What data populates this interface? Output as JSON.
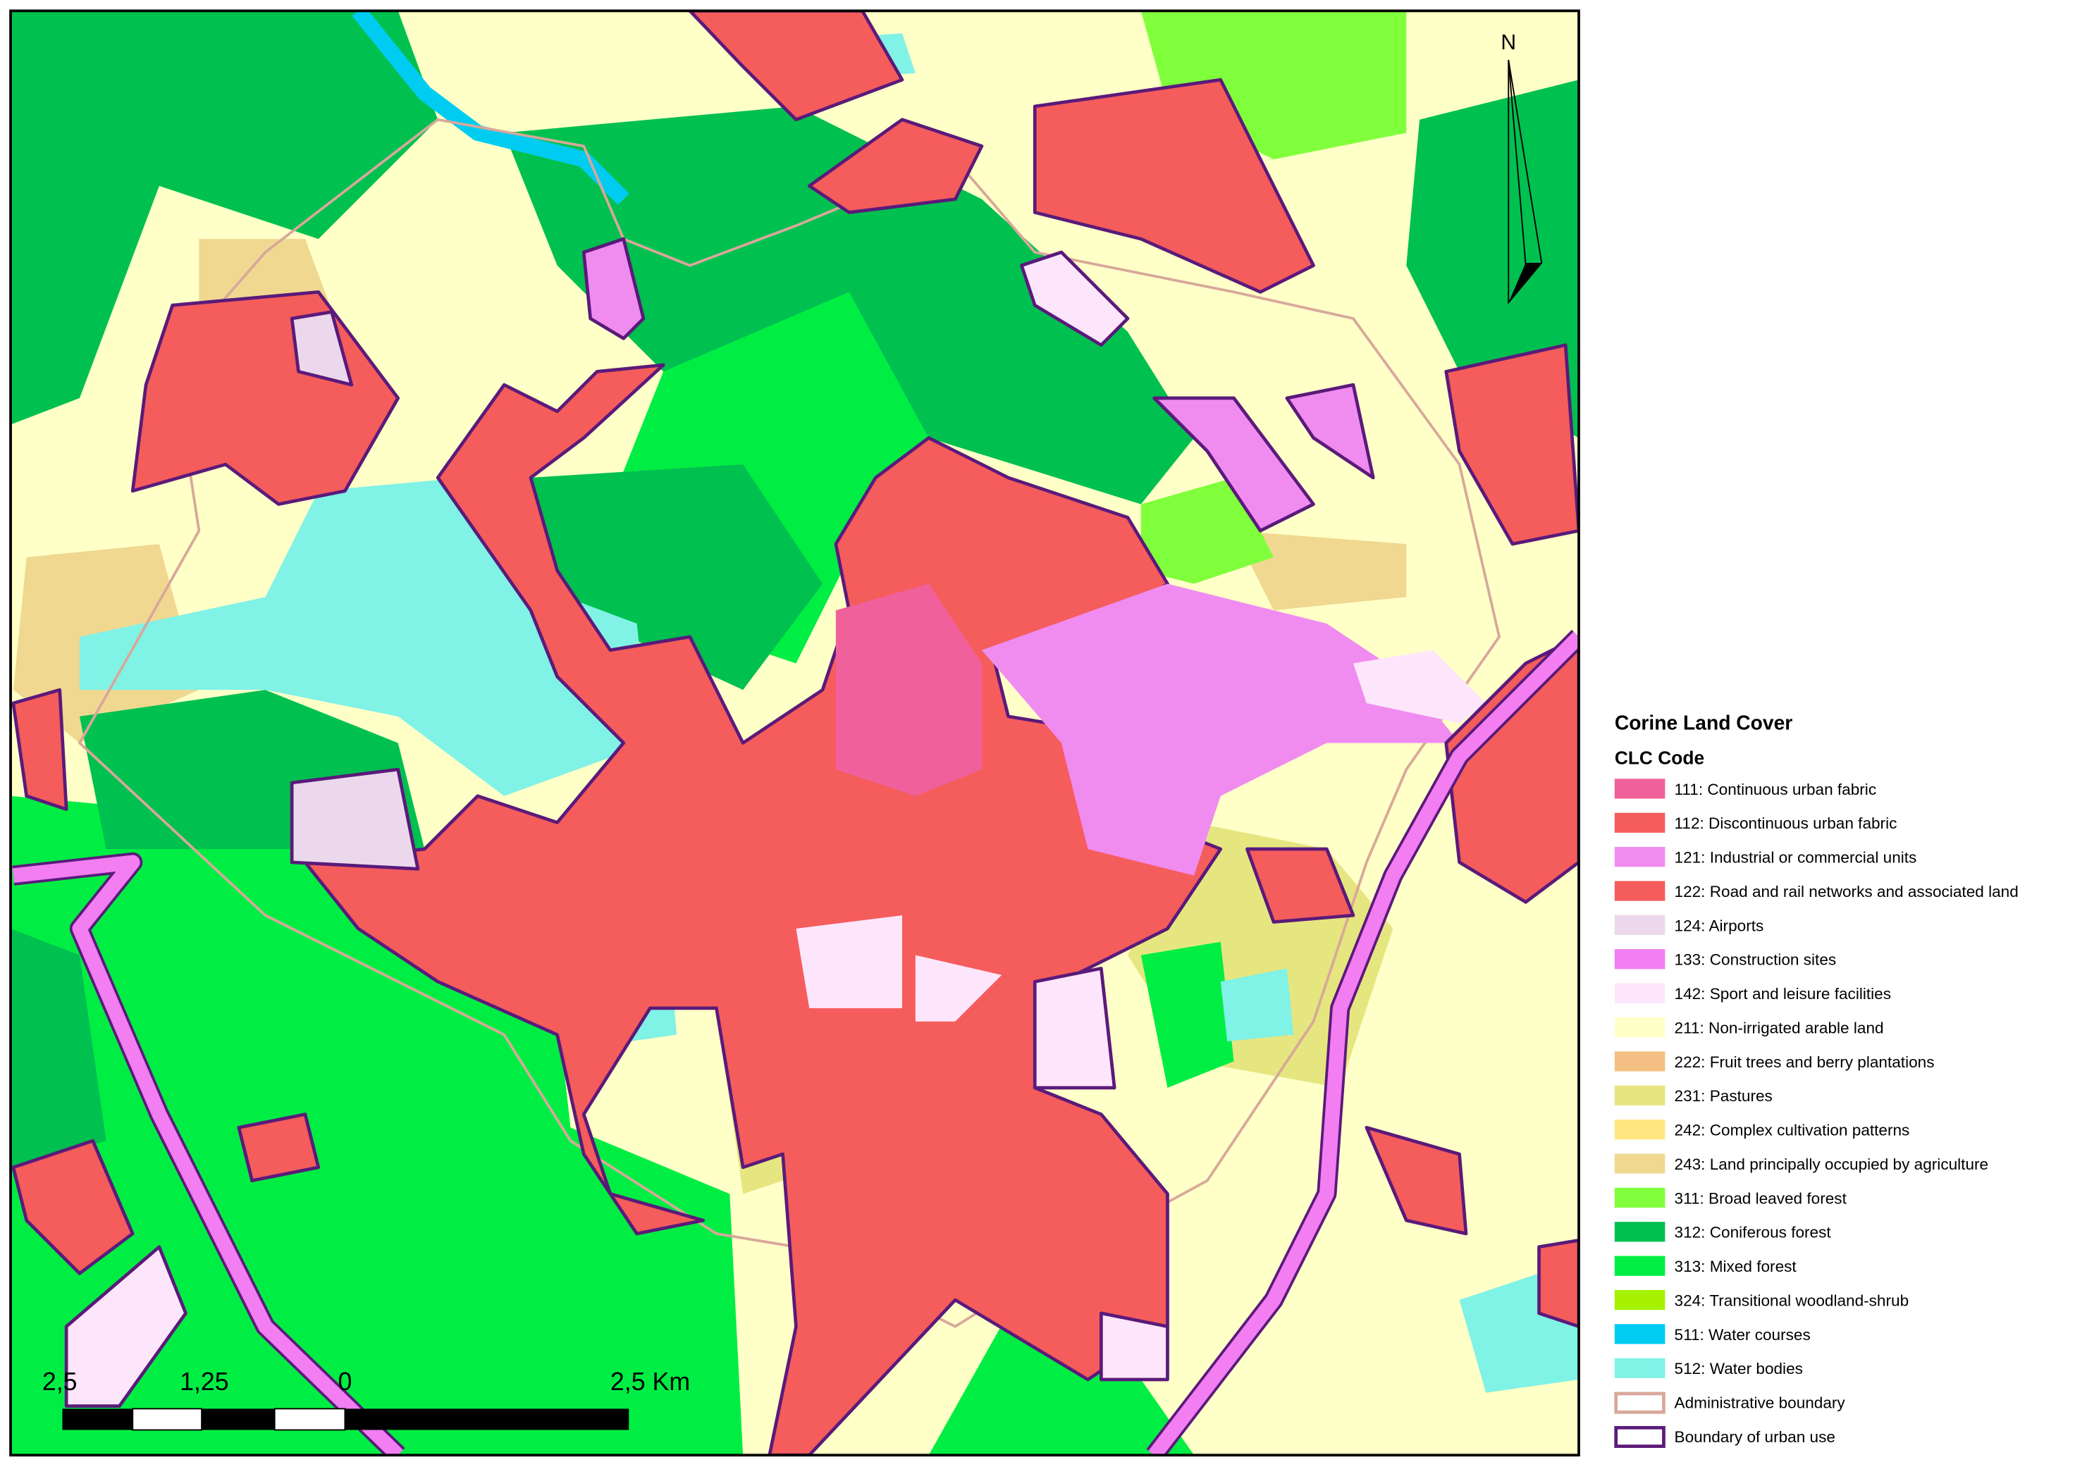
{
  "map": {
    "north_label": "N",
    "scale_bar": {
      "labels": [
        "2,5",
        "1,25",
        "0",
        "2,5 Km"
      ]
    },
    "legend": {
      "title": "Corine Land Cover",
      "subtitle": "CLC Code",
      "items": [
        {
          "label": "111: Continuous urban fabric",
          "color": "#f0609a"
        },
        {
          "label": "112: Discontinuous urban fabric",
          "color": "#f55c5c"
        },
        {
          "label": "121: Industrial or commercial units",
          "color": "#f08cf0"
        },
        {
          "label": "122: Road and rail networks and associated land",
          "color": "#f55c5c"
        },
        {
          "label": "124: Airports",
          "color": "#ecd8ec"
        },
        {
          "label": "133: Construction sites",
          "color": "#f27ef2"
        },
        {
          "label": "142: Sport and leisure facilities",
          "color": "#fde6fb"
        },
        {
          "label": "211: Non-irrigated arable land",
          "color": "#ffffc8"
        },
        {
          "label": "222: Fruit trees and berry plantations",
          "color": "#f4bf82"
        },
        {
          "label": "231: Pastures",
          "color": "#e6e680"
        },
        {
          "label": "242: Complex cultivation patterns",
          "color": "#ffe680"
        },
        {
          "label": "243: Land principally occupied by agriculture",
          "color": "#f0d890"
        },
        {
          "label": "311: Broad leaved forest",
          "color": "#80ff3c"
        },
        {
          "label": "312: Coniferous forest",
          "color": "#00c050"
        },
        {
          "label": "313: Mixed forest",
          "color": "#00ee44"
        },
        {
          "label": "324: Transitional woodland-shrub",
          "color": "#a6f200"
        },
        {
          "label": "511: Water courses",
          "color": "#00ccf2"
        },
        {
          "label": "512: Water bodies",
          "color": "#80f2e6"
        },
        {
          "label": "Administrative boundary",
          "outline": "#d8a89a"
        },
        {
          "label": "Boundary of urban use",
          "outline": "#5a1a7a"
        }
      ]
    }
  }
}
